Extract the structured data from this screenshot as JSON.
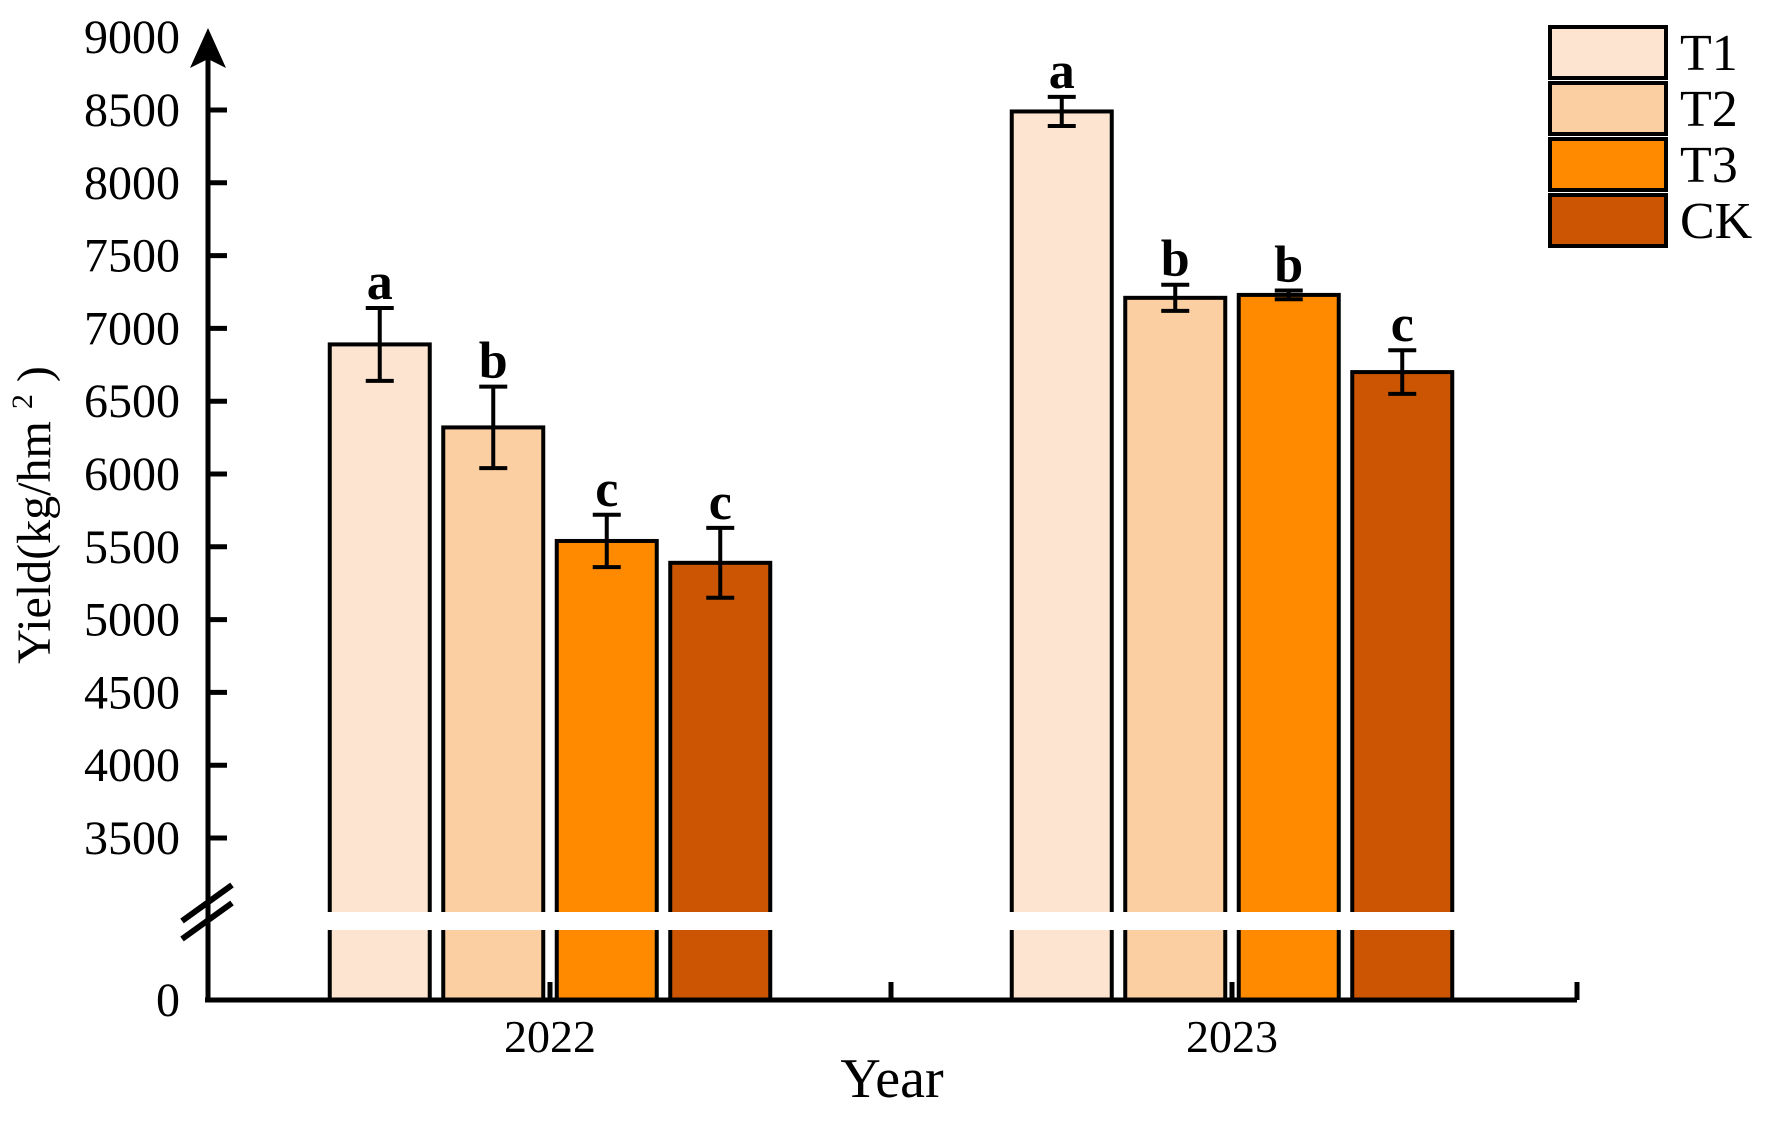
{
  "chart_data": {
    "type": "bar",
    "title": "",
    "xlabel": "Year",
    "ylabel": "Yield(kg/hm²)",
    "ylabel_parts": {
      "pre": "Yield(kg/hm",
      "sup": "2",
      "post": ")"
    },
    "categories": [
      "2022",
      "2023"
    ],
    "series": [
      {
        "name": "T1",
        "color": "#FCE4D0",
        "values": [
          6890,
          8490
        ],
        "errors": [
          250,
          100
        ],
        "sig_letters": [
          "a",
          "a"
        ]
      },
      {
        "name": "T2",
        "color": "#FCCFA2",
        "values": [
          6320,
          7210
        ],
        "errors": [
          280,
          90
        ],
        "sig_letters": [
          "b",
          "b"
        ]
      },
      {
        "name": "T3",
        "color": "#FF8A00",
        "values": [
          5540,
          7230
        ],
        "errors": [
          180,
          30
        ],
        "sig_letters": [
          "c",
          "b"
        ]
      },
      {
        "name": "CK",
        "color": "#CC5504",
        "values": [
          5390,
          6700
        ],
        "errors": [
          240,
          150
        ],
        "sig_letters": [
          "c",
          "c"
        ]
      }
    ],
    "y_axis": {
      "range": [
        0,
        9000
      ],
      "break_between": [
        0,
        3500
      ],
      "ticks": [
        {
          "value": 0,
          "label": "0",
          "has_tick": false
        },
        {
          "value": 3500,
          "label": "3500",
          "has_tick": true
        },
        {
          "value": 4000,
          "label": "4000",
          "has_tick": true
        },
        {
          "value": 4500,
          "label": "4500",
          "has_tick": true
        },
        {
          "value": 5000,
          "label": "5000",
          "has_tick": true
        },
        {
          "value": 5500,
          "label": "5500",
          "has_tick": true
        },
        {
          "value": 6000,
          "label": "6000",
          "has_tick": true
        },
        {
          "value": 6500,
          "label": "6500",
          "has_tick": true
        },
        {
          "value": 7000,
          "label": "7000",
          "has_tick": true
        },
        {
          "value": 7500,
          "label": "7500",
          "has_tick": true
        },
        {
          "value": 8000,
          "label": "8000",
          "has_tick": true
        },
        {
          "value": 8500,
          "label": "8500",
          "has_tick": true
        },
        {
          "value": 9000,
          "label": "9000",
          "has_tick": false
        }
      ]
    },
    "legend": {
      "position": "top-right",
      "entries": [
        "T1",
        "T2",
        "T3",
        "CK"
      ]
    },
    "grid": false,
    "background": "#FFFFFF",
    "axis_color": "#000000",
    "bar_border_color": "#000000"
  }
}
